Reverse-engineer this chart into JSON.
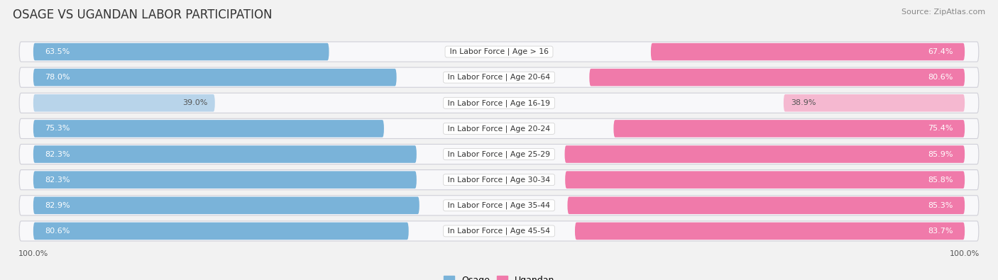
{
  "title": "OSAGE VS UGANDAN LABOR PARTICIPATION",
  "source": "Source: ZipAtlas.com",
  "categories": [
    "In Labor Force | Age > 16",
    "In Labor Force | Age 20-64",
    "In Labor Force | Age 16-19",
    "In Labor Force | Age 20-24",
    "In Labor Force | Age 25-29",
    "In Labor Force | Age 30-34",
    "In Labor Force | Age 35-44",
    "In Labor Force | Age 45-54"
  ],
  "osage_values": [
    63.5,
    78.0,
    39.0,
    75.3,
    82.3,
    82.3,
    82.9,
    80.6
  ],
  "ugandan_values": [
    67.4,
    80.6,
    38.9,
    75.4,
    85.9,
    85.8,
    85.3,
    83.7
  ],
  "osage_color": "#7ab3d9",
  "osage_light_color": "#b8d4ea",
  "ugandan_color": "#f07aaa",
  "ugandan_light_color": "#f5b8d0",
  "bg_color": "#f2f2f2",
  "row_bg_color": "#e2e4e8",
  "row_inner_bg": "#f8f8fa",
  "max_value": 100.0,
  "legend_osage": "Osage",
  "legend_ugandan": "Ugandan",
  "title_fontsize": 12,
  "source_fontsize": 8,
  "value_fontsize": 8,
  "cat_fontsize": 7.8,
  "xtick_fontsize": 8
}
